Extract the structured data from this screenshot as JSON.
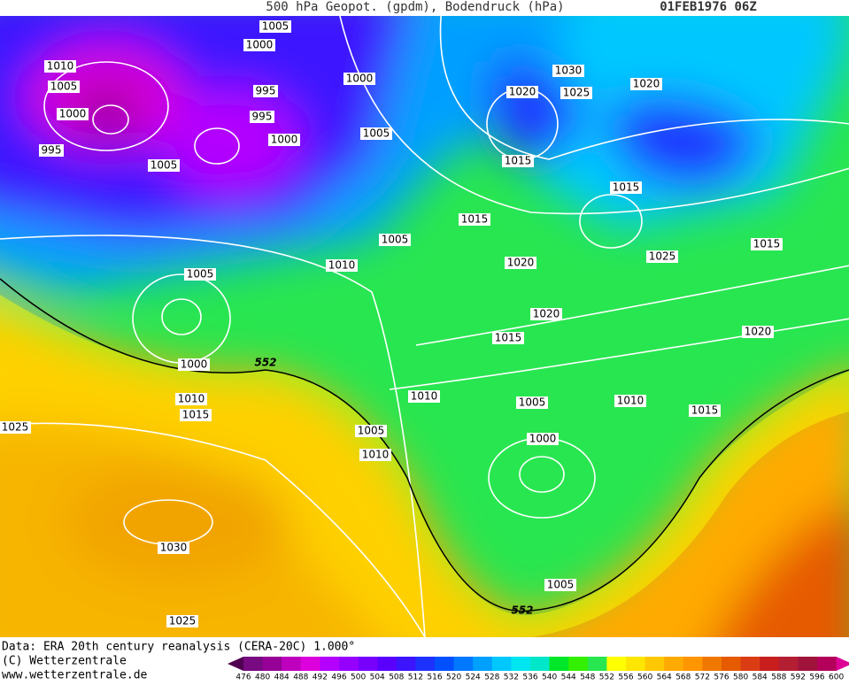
{
  "header": {
    "title": "500 hPa Geopot. (gpdm), Bodendruck (hPa)",
    "date": "01FEB1976 06Z"
  },
  "isobar_labels": [
    1005,
    1000,
    1010,
    1005,
    1000,
    995,
    995,
    995,
    1000,
    1005,
    1000,
    1005,
    1030,
    1020,
    1025,
    1020,
    1015,
    1015,
    1015,
    1005,
    1015,
    1020,
    1025,
    1010,
    1005,
    1020,
    1020,
    1015,
    552,
    1000,
    1010,
    1015,
    1010,
    1005,
    1010,
    1015,
    1025,
    1005,
    1010,
    1000,
    1030,
    1005,
    552,
    1025
  ],
  "footer": {
    "source": "Data: ERA 20th century reanalysis (CERA-20C) 1.000°",
    "copyright": "(C) Wetterzentrale",
    "url": "www.wetterzentrale.de"
  },
  "legend": {
    "labels": [
      476,
      480,
      484,
      488,
      492,
      496,
      500,
      504,
      508,
      512,
      516,
      520,
      524,
      528,
      532,
      536,
      540,
      544,
      548,
      552,
      556,
      560,
      564,
      568,
      572,
      576,
      580,
      584,
      588,
      592,
      596,
      600
    ],
    "colors": [
      "#500050",
      "#780a82",
      "#960096",
      "#be00be",
      "#dc00dc",
      "#b400ff",
      "#9600ff",
      "#7800ff",
      "#5a00ff",
      "#3c14ff",
      "#1e32ff",
      "#0050ff",
      "#0078ff",
      "#00a0ff",
      "#00c8ff",
      "#00e6f0",
      "#00e6c8",
      "#00e628",
      "#32f000",
      "#28e650",
      "#ffff00",
      "#ffe600",
      "#ffc800",
      "#ffaa00",
      "#ff9600",
      "#f07800",
      "#e65a00",
      "#dc3c14",
      "#c81e1e",
      "#b41e32",
      "#a0143c",
      "#b4005a",
      "#dc0096"
    ]
  }
}
